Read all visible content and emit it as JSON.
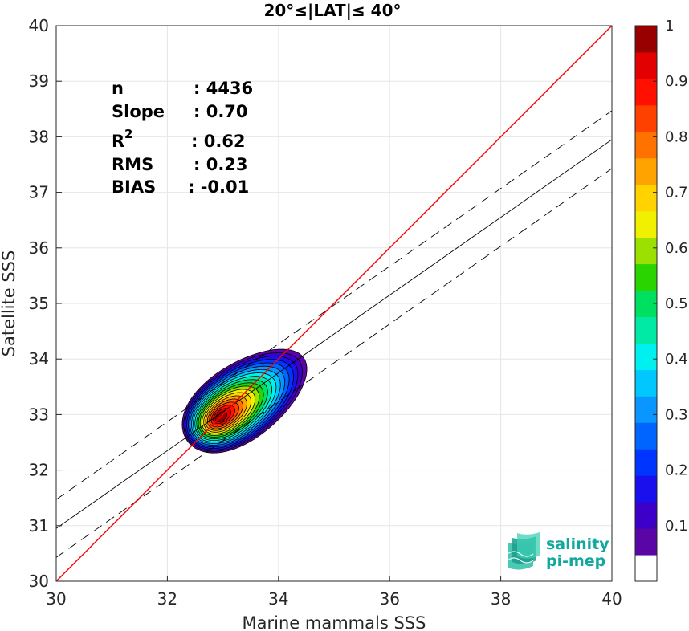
{
  "chart_data": {
    "type": "scatter",
    "subtype": "density-contour",
    "title": "20°≤|LAT|≤ 40°",
    "xlabel": "Marine mammals SSS",
    "ylabel": "Satellite SSS",
    "xlim": [
      30,
      40
    ],
    "ylim": [
      30,
      40
    ],
    "xticks": [
      30,
      32,
      34,
      36,
      38,
      40
    ],
    "yticks": [
      30,
      31,
      32,
      33,
      34,
      35,
      36,
      37,
      38,
      39,
      40
    ],
    "grid": true,
    "stats": [
      {
        "label": "n",
        "value": ": 4436"
      },
      {
        "label": "Slope",
        "value": ": 0.70"
      },
      {
        "label": "R",
        "sup": "2",
        "value": ": 0.62"
      },
      {
        "label": "RMS",
        "value": ": 0.23"
      },
      {
        "label": "BIAS",
        "value": ": -0.01"
      }
    ],
    "lines": {
      "one_to_one": {
        "x": [
          30,
          40
        ],
        "y": [
          30,
          40
        ],
        "color": "#ff0000"
      },
      "regression": {
        "slope": 0.7,
        "intercept": 9.95,
        "color": "#000000"
      },
      "regression_upper": {
        "slope": 0.7,
        "intercept": 10.47,
        "dash": true
      },
      "regression_lower": {
        "slope": 0.7,
        "intercept": 9.43,
        "dash": true
      }
    },
    "density_center": {
      "x": 32.95,
      "y": 32.95
    },
    "colorbar": {
      "range": [
        0,
        1
      ],
      "ticks": [
        "0.1",
        "0.2",
        "0.3",
        "0.4",
        "0.5",
        "0.6",
        "0.7",
        "0.8",
        "0.9",
        "1"
      ],
      "levels": [
        "#ffffff",
        "#5a06a6",
        "#3c00c8",
        "#1a10ee",
        "#0035ff",
        "#0064ff",
        "#0a96ff",
        "#00c8ff",
        "#00f0f0",
        "#00eaa6",
        "#00e060",
        "#2ad400",
        "#9be000",
        "#f0f000",
        "#ffd200",
        "#ffa300",
        "#ff7200",
        "#ff4100",
        "#ff1000",
        "#e20000",
        "#980000"
      ]
    }
  },
  "logo": {
    "line1": "salinity",
    "line2": "pi-mep"
  }
}
